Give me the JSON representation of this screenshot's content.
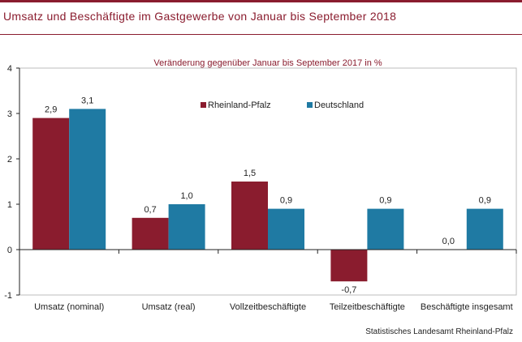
{
  "header": {
    "title": "Umsatz und Beschäftigte im Gastgewerbe von Januar bis September 2018"
  },
  "chart_data": {
    "type": "bar",
    "subtitle": "Veränderung  gegenüber  Januar bis September 2017 in %",
    "categories": [
      "Umsatz (nominal)",
      "Umsatz (real)",
      "Vollzeitbeschäftigte",
      "Teilzeitbeschäftigte",
      "Beschäftigte insgesamt"
    ],
    "series": [
      {
        "name": "Rheinland-Pfalz",
        "color": "#8a1c2e",
        "values": [
          2.9,
          0.7,
          1.5,
          -0.7,
          0.0
        ],
        "labels": [
          "2,9",
          "0,7",
          "1,5",
          "-0,7",
          "0,0"
        ]
      },
      {
        "name": "Deutschland",
        "color": "#1f7aa3",
        "values": [
          3.1,
          1.0,
          0.9,
          0.9,
          0.9
        ],
        "labels": [
          "3,1",
          "1,0",
          "0,9",
          "0,9",
          "0,9"
        ]
      }
    ],
    "ylim": [
      -1,
      4
    ],
    "yticks": [
      -1,
      0,
      1,
      2,
      3,
      4
    ],
    "ytick_labels": [
      "-1",
      "0",
      "1",
      "2",
      "3",
      "4"
    ],
    "legend_position": "top-right",
    "grid": false
  },
  "footer": {
    "source": "Statistisches Landesamt Rheinland-Pfalz"
  }
}
